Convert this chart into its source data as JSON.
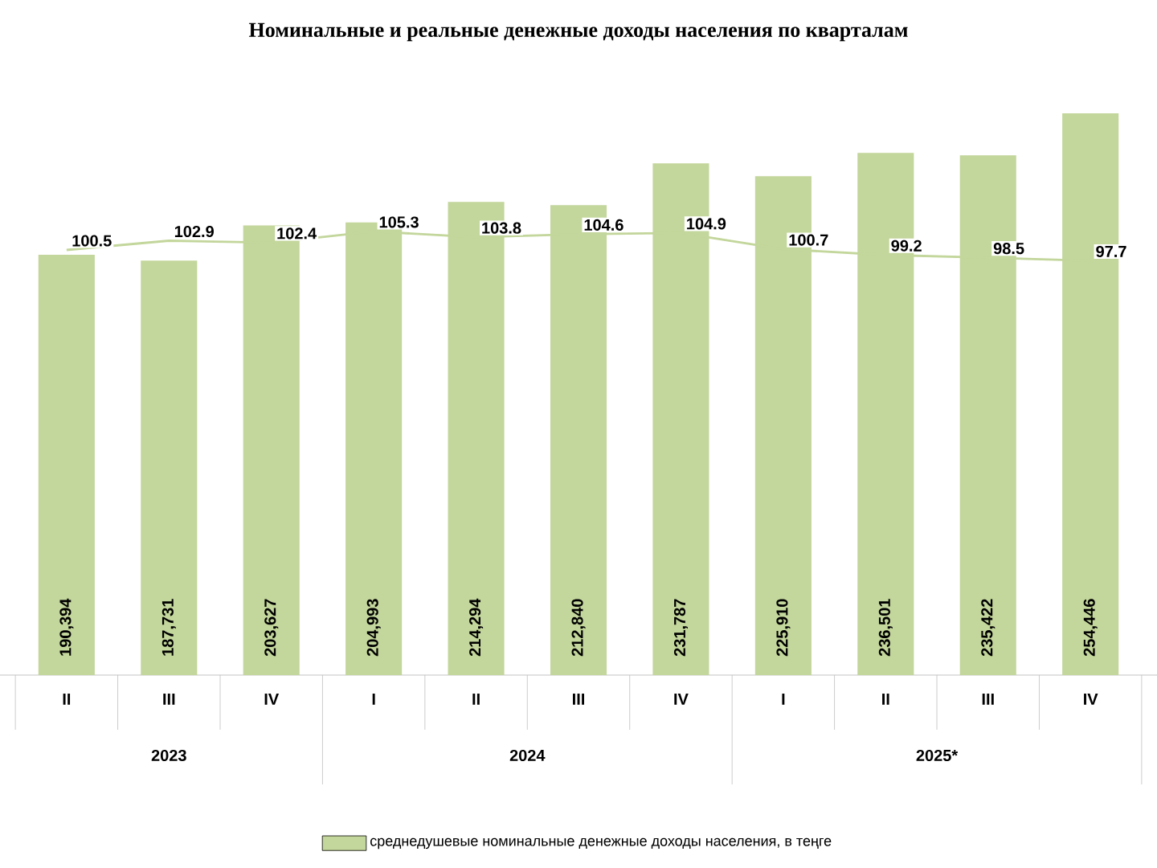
{
  "chart_data": {
    "type": "bar",
    "title": "Номинальные и реальные денежные доходы населения по кварталам",
    "categories": [
      "II",
      "III",
      "IV",
      "I",
      "II",
      "III",
      "IV",
      "I",
      "II",
      "III",
      "IV"
    ],
    "series": [
      {
        "name": "среднедушевые номинальные денежные доходы населения, в теңге",
        "color": "#c3d69b",
        "values": [
          190394,
          187731,
          203627,
          204993,
          214294,
          212840,
          231787,
          225910,
          236501,
          235422,
          254446
        ],
        "value_labels": [
          "190,394",
          "187,731",
          "203,627",
          "204,993",
          "214,294",
          "212,840",
          "231,787",
          "225,910",
          "236,501",
          "235,422",
          "254,446"
        ]
      },
      {
        "type": "line",
        "axis": "y2",
        "color": "#c3d69b",
        "values": [
          100.5,
          102.9,
          102.4,
          105.3,
          103.8,
          104.6,
          104.9,
          100.7,
          99.2,
          98.5,
          97.7
        ]
      }
    ],
    "legend": "bottom",
    "data_labels": true,
    "tick_labels": "x",
    "annotations": [
      "2023",
      "2024",
      "2025*"
    ]
  }
}
